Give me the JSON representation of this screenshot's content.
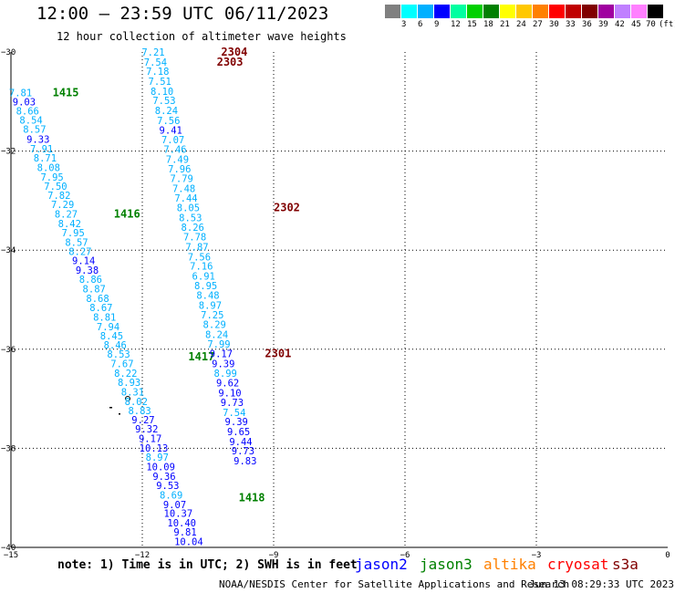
{
  "header": {
    "title": "12:00 – 23:59 UTC 06/11/2023",
    "subtitle": "12 hour collection of altimeter wave heights"
  },
  "legend": {
    "colors": [
      "#808080",
      "#00ffff",
      "#00b0ff",
      "#0000ff",
      "#00ffa0",
      "#00d000",
      "#008000",
      "#ffff00",
      "#ffc800",
      "#ff8000",
      "#ff0000",
      "#c00000",
      "#800000",
      "#a000a0",
      "#c080ff",
      "#ff80ff",
      "#000000"
    ],
    "labels": [
      "3",
      "6",
      "9",
      "12",
      "15",
      "18",
      "21",
      "24",
      "27",
      "30",
      "33",
      "36",
      "39",
      "42",
      "45",
      "70",
      "(ft)"
    ]
  },
  "axes": {
    "lon_ticks": [
      {
        "value": -15,
        "label": "−15"
      },
      {
        "value": -12,
        "label": "−12"
      },
      {
        "value": -9,
        "label": "−9"
      },
      {
        "value": -6,
        "label": "−6"
      },
      {
        "value": -3,
        "label": "−3"
      },
      {
        "value": 0,
        "label": "0"
      }
    ],
    "lat_ticks": [
      {
        "value": -30,
        "label": "−30"
      },
      {
        "value": -32,
        "label": "−32"
      },
      {
        "value": -34,
        "label": "−34"
      },
      {
        "value": -36,
        "label": "−36"
      },
      {
        "value": -38,
        "label": "−38"
      },
      {
        "value": -40,
        "label": "−40"
      }
    ]
  },
  "tracks": [
    {
      "satellite": "jason3",
      "points": [
        {
          "lon": -14.78,
          "lat": -30.82,
          "swh": "7.81",
          "color": "#00b0ff"
        },
        {
          "lon": -14.7,
          "lat": -31.0,
          "swh": "9.03",
          "color": "#0000ff"
        },
        {
          "lon": -14.62,
          "lat": -31.19,
          "swh": "8.66",
          "color": "#00b0ff"
        },
        {
          "lon": -14.54,
          "lat": -31.37,
          "swh": "8.54",
          "color": "#00b0ff"
        },
        {
          "lon": -14.46,
          "lat": -31.56,
          "swh": "8.57",
          "color": "#00b0ff"
        },
        {
          "lon": -14.38,
          "lat": -31.76,
          "swh": "9.33",
          "color": "#0000ff"
        },
        {
          "lon": -14.3,
          "lat": -31.95,
          "swh": "7.91",
          "color": "#00b0ff"
        },
        {
          "lon": -14.22,
          "lat": -32.14,
          "swh": "8.71",
          "color": "#00b0ff"
        },
        {
          "lon": -14.14,
          "lat": -32.33,
          "swh": "8.08",
          "color": "#00b0ff"
        },
        {
          "lon": -14.06,
          "lat": -32.52,
          "swh": "7.95",
          "color": "#00b0ff"
        },
        {
          "lon": -13.98,
          "lat": -32.71,
          "swh": "7.50",
          "color": "#00b0ff"
        },
        {
          "lon": -13.9,
          "lat": -32.89,
          "swh": "7.82",
          "color": "#00b0ff"
        },
        {
          "lon": -13.82,
          "lat": -33.08,
          "swh": "7.29",
          "color": "#00b0ff"
        },
        {
          "lon": -13.74,
          "lat": -33.27,
          "swh": "8.27",
          "color": "#00b0ff"
        },
        {
          "lon": -13.66,
          "lat": -33.46,
          "swh": "8.42",
          "color": "#00b0ff"
        },
        {
          "lon": -13.58,
          "lat": -33.65,
          "swh": "7.95",
          "color": "#00b0ff"
        },
        {
          "lon": -13.5,
          "lat": -33.84,
          "swh": "8.57",
          "color": "#00b0ff"
        },
        {
          "lon": -13.42,
          "lat": -34.02,
          "swh": "8.27",
          "color": "#00b0ff"
        },
        {
          "lon": -13.34,
          "lat": -34.21,
          "swh": "9.14",
          "color": "#0000ff"
        },
        {
          "lon": -13.26,
          "lat": -34.4,
          "swh": "9.38",
          "color": "#0000ff"
        },
        {
          "lon": -13.18,
          "lat": -34.59,
          "swh": "8.86",
          "color": "#00b0ff"
        },
        {
          "lon": -13.1,
          "lat": -34.78,
          "swh": "8.87",
          "color": "#00b0ff"
        },
        {
          "lon": -13.02,
          "lat": -34.97,
          "swh": "8.68",
          "color": "#00b0ff"
        },
        {
          "lon": -12.94,
          "lat": -35.16,
          "swh": "8.67",
          "color": "#00b0ff"
        },
        {
          "lon": -12.86,
          "lat": -35.35,
          "swh": "8.81",
          "color": "#00b0ff"
        },
        {
          "lon": -12.78,
          "lat": -35.54,
          "swh": "7.94",
          "color": "#00b0ff"
        },
        {
          "lon": -12.7,
          "lat": -35.73,
          "swh": "8.45",
          "color": "#00b0ff"
        },
        {
          "lon": -12.62,
          "lat": -35.91,
          "swh": "8.46",
          "color": "#00b0ff"
        },
        {
          "lon": -12.54,
          "lat": -36.1,
          "swh": "8.53",
          "color": "#00b0ff"
        },
        {
          "lon": -12.46,
          "lat": -36.29,
          "swh": "7.67",
          "color": "#00b0ff"
        },
        {
          "lon": -12.38,
          "lat": -36.48,
          "swh": "8.22",
          "color": "#00b0ff"
        },
        {
          "lon": -12.3,
          "lat": -36.67,
          "swh": "8.93",
          "color": "#00b0ff"
        },
        {
          "lon": -12.22,
          "lat": -36.86,
          "swh": "8.31",
          "color": "#00b0ff"
        },
        {
          "lon": -12.14,
          "lat": -37.05,
          "swh": "8.02",
          "color": "#00b0ff"
        },
        {
          "lon": -12.06,
          "lat": -37.24,
          "swh": "8.83",
          "color": "#00b0ff"
        },
        {
          "lon": -11.98,
          "lat": -37.42,
          "swh": "9.27",
          "color": "#0000ff"
        },
        {
          "lon": -11.9,
          "lat": -37.61,
          "swh": "9.32",
          "color": "#0000ff"
        },
        {
          "lon": -11.82,
          "lat": -37.8,
          "swh": "9.17",
          "color": "#0000ff"
        },
        {
          "lon": -11.74,
          "lat": -37.99,
          "swh": "10.13",
          "color": "#0000ff"
        },
        {
          "lon": -11.66,
          "lat": -38.18,
          "swh": "8.97",
          "color": "#00b0ff"
        },
        {
          "lon": -11.58,
          "lat": -38.37,
          "swh": "10.09",
          "color": "#0000ff"
        },
        {
          "lon": -11.5,
          "lat": -38.56,
          "swh": "9.36",
          "color": "#0000ff"
        },
        {
          "lon": -11.42,
          "lat": -38.75,
          "swh": "9.53",
          "color": "#0000ff"
        },
        {
          "lon": -11.34,
          "lat": -38.94,
          "swh": "8.69",
          "color": "#00b0ff"
        },
        {
          "lon": -11.26,
          "lat": -39.13,
          "swh": "9.07",
          "color": "#0000ff"
        },
        {
          "lon": -11.18,
          "lat": -39.31,
          "swh": "10.37",
          "color": "#0000ff"
        },
        {
          "lon": -11.1,
          "lat": -39.5,
          "swh": "10.40",
          "color": "#0000ff"
        },
        {
          "lon": -11.02,
          "lat": -39.69,
          "swh": "9.81",
          "color": "#0000ff"
        },
        {
          "lon": -10.94,
          "lat": -39.88,
          "swh": "10.04",
          "color": "#0000ff"
        }
      ],
      "passes": [
        {
          "lon": -14.05,
          "lat": -30.82,
          "text": "1415",
          "color": "#008000"
        },
        {
          "lon": -12.65,
          "lat": -33.27,
          "text": "1416",
          "color": "#008000"
        },
        {
          "lon": -10.95,
          "lat": -36.15,
          "text": "1417",
          "color": "#008000"
        },
        {
          "lon": -9.8,
          "lat": -39.0,
          "text": "1418",
          "color": "#008000"
        }
      ]
    },
    {
      "satellite": "s3a",
      "points": [
        {
          "lon": -11.75,
          "lat": -30.0,
          "swh": "7.21",
          "color": "#00b0ff"
        },
        {
          "lon": -11.7,
          "lat": -30.2,
          "swh": "7.54",
          "color": "#00b0ff"
        },
        {
          "lon": -11.65,
          "lat": -30.39,
          "swh": "7.18",
          "color": "#00b0ff"
        },
        {
          "lon": -11.6,
          "lat": -30.59,
          "swh": "7.51",
          "color": "#00b0ff"
        },
        {
          "lon": -11.55,
          "lat": -30.79,
          "swh": "8.10",
          "color": "#00b0ff"
        },
        {
          "lon": -11.5,
          "lat": -30.98,
          "swh": "7.53",
          "color": "#00b0ff"
        },
        {
          "lon": -11.45,
          "lat": -31.18,
          "swh": "8.24",
          "color": "#00b0ff"
        },
        {
          "lon": -11.4,
          "lat": -31.38,
          "swh": "7.56",
          "color": "#00b0ff"
        },
        {
          "lon": -11.35,
          "lat": -31.57,
          "swh": "9.41",
          "color": "#0000ff"
        },
        {
          "lon": -11.3,
          "lat": -31.77,
          "swh": "7.07",
          "color": "#00b0ff"
        },
        {
          "lon": -11.25,
          "lat": -31.96,
          "swh": "7.46",
          "color": "#00b0ff"
        },
        {
          "lon": -11.2,
          "lat": -32.16,
          "swh": "7.49",
          "color": "#00b0ff"
        },
        {
          "lon": -11.15,
          "lat": -32.36,
          "swh": "7.96",
          "color": "#00b0ff"
        },
        {
          "lon": -11.1,
          "lat": -32.55,
          "swh": "7.79",
          "color": "#00b0ff"
        },
        {
          "lon": -11.05,
          "lat": -32.75,
          "swh": "7.48",
          "color": "#00b0ff"
        },
        {
          "lon": -11.0,
          "lat": -32.95,
          "swh": "7.44",
          "color": "#00b0ff"
        },
        {
          "lon": -10.95,
          "lat": -33.14,
          "swh": "8.05",
          "color": "#00b0ff"
        },
        {
          "lon": -10.9,
          "lat": -33.34,
          "swh": "8.53",
          "color": "#00b0ff"
        },
        {
          "lon": -10.85,
          "lat": -33.54,
          "swh": "8.26",
          "color": "#00b0ff"
        },
        {
          "lon": -10.8,
          "lat": -33.73,
          "swh": "7.78",
          "color": "#00b0ff"
        },
        {
          "lon": -10.75,
          "lat": -33.93,
          "swh": "7.87",
          "color": "#00b0ff"
        },
        {
          "lon": -10.7,
          "lat": -34.13,
          "swh": "7.56",
          "color": "#00b0ff"
        },
        {
          "lon": -10.65,
          "lat": -34.32,
          "swh": "7.16",
          "color": "#00b0ff"
        },
        {
          "lon": -10.6,
          "lat": -34.52,
          "swh": "6.91",
          "color": "#00b0ff"
        },
        {
          "lon": -10.55,
          "lat": -34.71,
          "swh": "8.95",
          "color": "#00b0ff"
        },
        {
          "lon": -10.5,
          "lat": -34.91,
          "swh": "8.48",
          "color": "#00b0ff"
        },
        {
          "lon": -10.45,
          "lat": -35.11,
          "swh": "8.97",
          "color": "#00b0ff"
        },
        {
          "lon": -10.4,
          "lat": -35.3,
          "swh": "7.25",
          "color": "#00b0ff"
        },
        {
          "lon": -10.35,
          "lat": -35.5,
          "swh": "8.29",
          "color": "#00b0ff"
        },
        {
          "lon": -10.3,
          "lat": -35.7,
          "swh": "8.24",
          "color": "#00b0ff"
        },
        {
          "lon": -10.25,
          "lat": -35.89,
          "swh": "7.99",
          "color": "#00b0ff"
        },
        {
          "lon": -10.2,
          "lat": -36.09,
          "swh": "9.17",
          "color": "#0000ff"
        },
        {
          "lon": -10.15,
          "lat": -36.29,
          "swh": "9.39",
          "color": "#0000ff"
        },
        {
          "lon": -10.1,
          "lat": -36.48,
          "swh": "8.99",
          "color": "#00b0ff"
        },
        {
          "lon": -10.05,
          "lat": -36.68,
          "swh": "9.62",
          "color": "#0000ff"
        },
        {
          "lon": -10.0,
          "lat": -36.88,
          "swh": "9.10",
          "color": "#0000ff"
        },
        {
          "lon": -9.95,
          "lat": -37.07,
          "swh": "9.73",
          "color": "#0000ff"
        },
        {
          "lon": -9.9,
          "lat": -37.27,
          "swh": "7.54",
          "color": "#00b0ff"
        },
        {
          "lon": -9.85,
          "lat": -37.46,
          "swh": "9.39",
          "color": "#0000ff"
        },
        {
          "lon": -9.8,
          "lat": -37.66,
          "swh": "9.65",
          "color": "#0000ff"
        },
        {
          "lon": -9.75,
          "lat": -37.86,
          "swh": "9.44",
          "color": "#0000ff"
        },
        {
          "lon": -9.7,
          "lat": -38.05,
          "swh": "9.73",
          "color": "#0000ff"
        },
        {
          "lon": -9.65,
          "lat": -38.25,
          "swh": "9.83",
          "color": "#0000ff"
        }
      ],
      "passes": [
        {
          "lon": -10.2,
          "lat": -30.0,
          "text": "2304",
          "color": "#800000"
        },
        {
          "lon": -10.3,
          "lat": -30.2,
          "text": "2303",
          "color": "#800000"
        },
        {
          "lon": -9.0,
          "lat": -33.14,
          "text": "2302",
          "color": "#800000"
        },
        {
          "lon": -9.2,
          "lat": -36.09,
          "text": "2301",
          "color": "#800000"
        }
      ]
    }
  ],
  "note": {
    "text": "note: 1) Time is in UTC; 2) SWH is in feet"
  },
  "missions": [
    {
      "name": "jason2",
      "color": "#0000ff"
    },
    {
      "name": "jason3",
      "color": "#008000"
    },
    {
      "name": "altika",
      "color": "#ff8000"
    },
    {
      "name": "cryosat",
      "color": "#ff0000"
    },
    {
      "name": "s3a",
      "color": "#800000"
    }
  ],
  "footer": {
    "credit": "NOAA/NESDIS Center for Satellite Applications and Research",
    "timestamp": "Jun 13 08:29:33 UTC 2023"
  }
}
